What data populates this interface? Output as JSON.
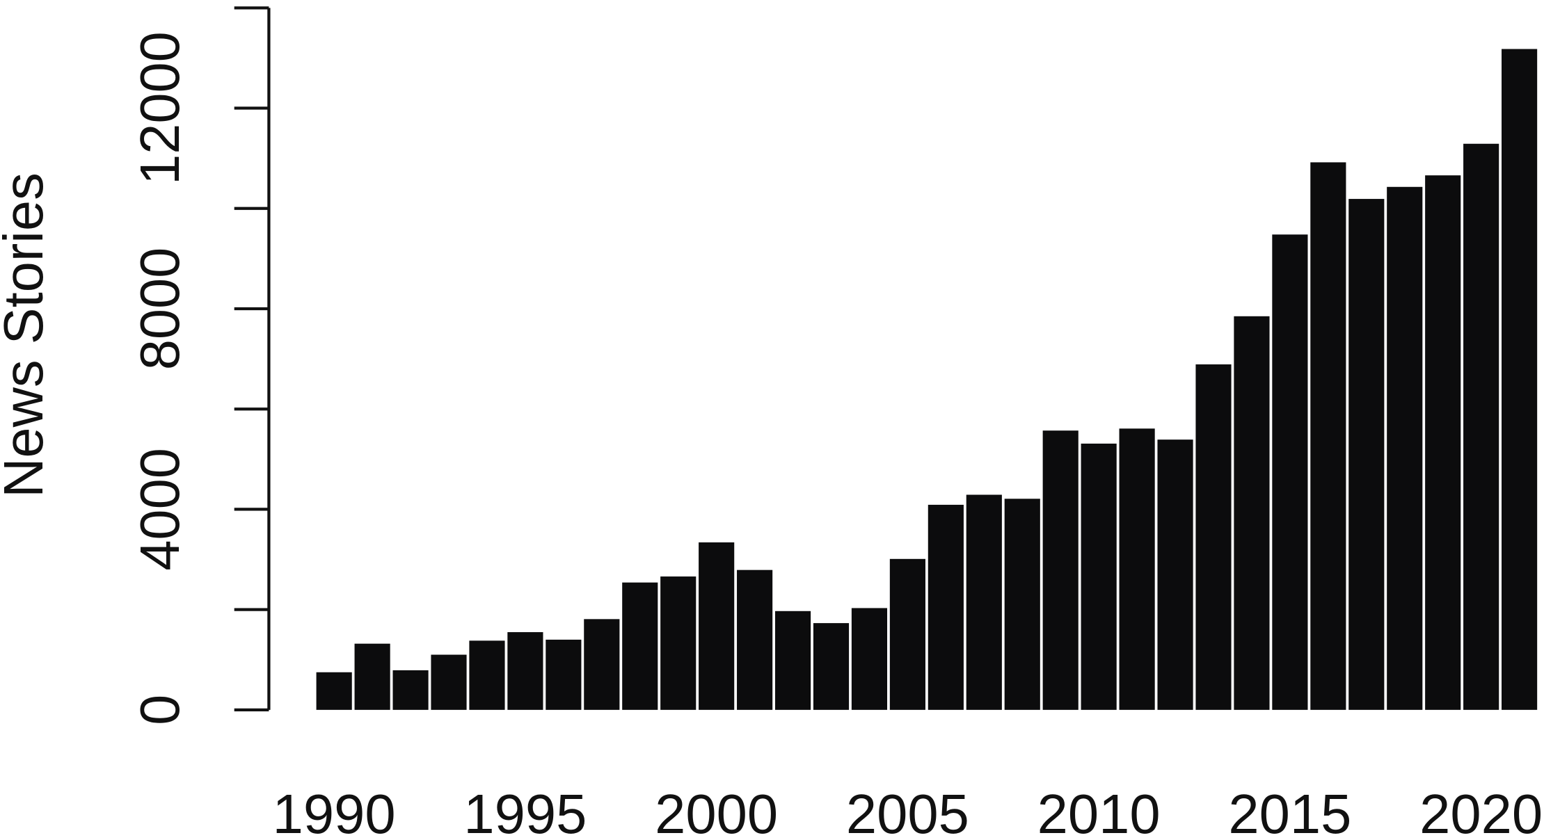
{
  "chart_data": {
    "type": "bar",
    "y_label": "News Stories",
    "x": [
      1990,
      1991,
      1992,
      1993,
      1994,
      1995,
      1996,
      1997,
      1998,
      1999,
      2000,
      2001,
      2002,
      2003,
      2004,
      2005,
      2006,
      2007,
      2008,
      2009,
      2010,
      2011,
      2012,
      2013,
      2014,
      2015,
      2016,
      2017,
      2018,
      2019,
      2020,
      2021
    ],
    "values": [
      750,
      1320,
      790,
      1100,
      1380,
      1550,
      1400,
      1810,
      2540,
      2660,
      3340,
      2790,
      1970,
      1730,
      2030,
      3010,
      4090,
      4290,
      4210,
      5570,
      5310,
      5610,
      5390,
      6890,
      7850,
      9480,
      10920,
      10190,
      10430,
      10660,
      11290,
      13180
    ],
    "color": "#0c0c0d",
    "xticks": [
      1990,
      1995,
      2000,
      2005,
      2010,
      2015,
      2020
    ],
    "ylim": [
      0,
      14000
    ],
    "yticks": [
      0,
      4000,
      8000,
      12000
    ],
    "yminor_ticks": [
      2000,
      6000,
      10000,
      14000
    ]
  }
}
